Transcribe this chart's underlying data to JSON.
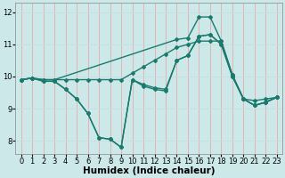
{
  "xlabel": "Humidex (Indice chaleur)",
  "bg_color": "#cce8e8",
  "line_color": "#1a7a6e",
  "grid_color": "#b0d4d4",
  "ylim": [
    7.6,
    12.3
  ],
  "xlim": [
    -0.5,
    23.5
  ],
  "yticks": [
    8,
    9,
    10,
    11,
    12
  ],
  "xticks": [
    0,
    1,
    2,
    3,
    4,
    5,
    6,
    7,
    8,
    9,
    10,
    11,
    12,
    13,
    14,
    15,
    16,
    17,
    18,
    19,
    20,
    21,
    22,
    23
  ],
  "lines": [
    {
      "x": [
        0,
        1,
        2,
        3,
        4,
        5,
        6,
        7,
        8,
        9,
        10,
        11,
        12,
        13,
        14,
        15,
        16,
        17,
        18,
        19,
        20,
        21,
        22,
        23
      ],
      "y": [
        9.9,
        9.95,
        9.9,
        9.9,
        9.9,
        9.9,
        9.9,
        9.9,
        9.9,
        9.9,
        10.1,
        10.3,
        10.5,
        10.7,
        10.9,
        11.0,
        11.1,
        11.1,
        11.1,
        10.05,
        9.3,
        9.25,
        9.3,
        9.35
      ]
    },
    {
      "x": [
        0,
        1,
        2,
        3,
        4,
        5,
        6,
        7,
        8,
        9,
        10,
        11,
        12,
        13,
        14,
        15,
        16,
        17,
        18,
        19,
        20,
        21,
        22,
        23
      ],
      "y": [
        9.9,
        9.95,
        9.85,
        9.85,
        9.6,
        9.3,
        8.85,
        8.1,
        8.05,
        7.8,
        9.9,
        9.75,
        9.65,
        9.6,
        10.5,
        10.65,
        11.25,
        11.3,
        11.0,
        10.0,
        9.3,
        9.1,
        9.2,
        9.35
      ]
    },
    {
      "x": [
        0,
        1,
        2,
        3,
        14,
        15,
        16,
        17,
        18,
        19,
        20,
        21,
        22,
        23
      ],
      "y": [
        9.9,
        9.95,
        9.9,
        9.9,
        11.15,
        11.2,
        11.85,
        11.85,
        11.1,
        10.05,
        9.3,
        9.1,
        9.2,
        9.35
      ]
    },
    {
      "x": [
        0,
        1,
        2,
        3,
        4,
        5,
        6,
        7,
        8,
        9,
        10,
        11,
        12,
        13,
        14,
        15,
        16,
        17,
        18,
        19,
        20,
        21,
        22,
        23
      ],
      "y": [
        9.9,
        9.95,
        9.85,
        9.85,
        9.6,
        9.3,
        8.85,
        8.1,
        8.05,
        7.8,
        9.9,
        9.7,
        9.6,
        9.55,
        10.5,
        10.65,
        11.25,
        11.3,
        11.0,
        10.0,
        9.3,
        9.1,
        9.2,
        9.35
      ]
    }
  ],
  "marker": "D",
  "markersize": 2.0,
  "linewidth": 1.0,
  "tick_fontsize": 6.0,
  "xlabel_fontsize": 7.5
}
